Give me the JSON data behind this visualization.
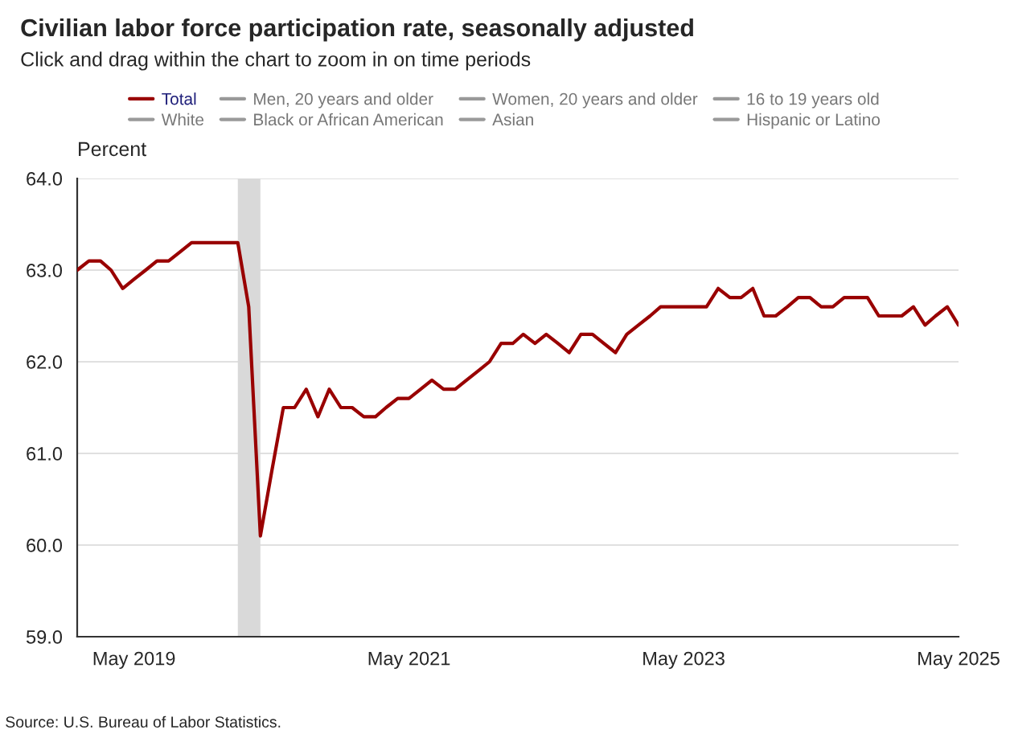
{
  "chart_data": {
    "type": "line",
    "title": "Civilian labor force participation rate, seasonally adjusted",
    "subtitle": "Click and drag within the chart to zoom in on time periods",
    "ylabel": "Percent",
    "annotations": [
      "Source: U.S. Bureau of Labor Statistics."
    ],
    "x": [
      "2018-12",
      "2019-01",
      "2019-02",
      "2019-03",
      "2019-04",
      "2019-05",
      "2019-06",
      "2019-07",
      "2019-08",
      "2019-09",
      "2019-10",
      "2019-11",
      "2019-12",
      "2020-01",
      "2020-02",
      "2020-03",
      "2020-04",
      "2020-05",
      "2020-06",
      "2020-07",
      "2020-08",
      "2020-09",
      "2020-10",
      "2020-11",
      "2020-12",
      "2021-01",
      "2021-02",
      "2021-03",
      "2021-04",
      "2021-05",
      "2021-06",
      "2021-07",
      "2021-08",
      "2021-09",
      "2021-10",
      "2021-11",
      "2021-12",
      "2022-01",
      "2022-02",
      "2022-03",
      "2022-04",
      "2022-05",
      "2022-06",
      "2022-07",
      "2022-08",
      "2022-09",
      "2022-10",
      "2022-11",
      "2022-12",
      "2023-01",
      "2023-02",
      "2023-03",
      "2023-04",
      "2023-05",
      "2023-06",
      "2023-07",
      "2023-08",
      "2023-09",
      "2023-10",
      "2023-11",
      "2023-12",
      "2024-01",
      "2024-02",
      "2024-03",
      "2024-04",
      "2024-05",
      "2024-06",
      "2024-07",
      "2024-08",
      "2024-09",
      "2024-10",
      "2024-11",
      "2024-12",
      "2025-01",
      "2025-02",
      "2025-03",
      "2025-04",
      "2025-05"
    ],
    "series": [
      {
        "name": "Total",
        "color": "#990000",
        "values": [
          63.0,
          63.1,
          63.1,
          63.0,
          62.8,
          62.9,
          63.0,
          63.1,
          63.1,
          63.2,
          63.3,
          63.3,
          63.3,
          63.3,
          63.3,
          62.6,
          60.1,
          60.8,
          61.5,
          61.5,
          61.7,
          61.4,
          61.7,
          61.5,
          61.5,
          61.4,
          61.4,
          61.5,
          61.6,
          61.6,
          61.7,
          61.8,
          61.7,
          61.7,
          61.8,
          61.9,
          62.0,
          62.2,
          62.2,
          62.3,
          62.2,
          62.3,
          62.2,
          62.1,
          62.3,
          62.3,
          62.2,
          62.1,
          62.3,
          62.4,
          62.5,
          62.6,
          62.6,
          62.6,
          62.6,
          62.6,
          62.8,
          62.7,
          62.7,
          62.8,
          62.5,
          62.5,
          62.6,
          62.7,
          62.7,
          62.6,
          62.6,
          62.7,
          62.7,
          62.7,
          62.5,
          62.5,
          62.5,
          62.6,
          62.4,
          62.5,
          62.6,
          62.4
        ]
      },
      {
        "name": "Men, 20 years and older",
        "color": "#999999",
        "values": [
          null,
          null,
          null,
          null,
          null,
          null,
          null,
          null,
          null,
          null,
          null,
          null,
          null,
          null,
          null,
          null,
          null,
          null,
          null,
          null,
          null,
          null,
          null,
          null,
          null,
          null,
          null,
          null,
          null,
          null,
          null,
          null,
          null,
          null,
          null,
          null,
          null,
          null,
          null,
          null,
          null,
          null,
          null,
          null,
          null,
          null,
          null,
          null,
          null,
          null,
          null,
          null,
          null,
          null,
          null,
          null,
          null,
          null,
          null,
          null,
          null,
          null,
          null,
          null,
          null,
          null,
          null,
          null,
          null,
          null,
          null,
          null,
          null,
          null,
          null,
          null,
          null,
          null
        ]
      },
      {
        "name": "Women, 20 years and older",
        "color": "#999999",
        "values": [
          null,
          null,
          null,
          null,
          null,
          null,
          null,
          null,
          null,
          null,
          null,
          null,
          null,
          null,
          null,
          null,
          null,
          null,
          null,
          null,
          null,
          null,
          null,
          null,
          null,
          null,
          null,
          null,
          null,
          null,
          null,
          null,
          null,
          null,
          null,
          null,
          null,
          null,
          null,
          null,
          null,
          null,
          null,
          null,
          null,
          null,
          null,
          null,
          null,
          null,
          null,
          null,
          null,
          null,
          null,
          null,
          null,
          null,
          null,
          null,
          null,
          null,
          null,
          null,
          null,
          null,
          null,
          null,
          null,
          null,
          null,
          null,
          null,
          null,
          null,
          null,
          null,
          null
        ]
      },
      {
        "name": "16 to 19 years old",
        "color": "#999999",
        "values": [
          null,
          null,
          null,
          null,
          null,
          null,
          null,
          null,
          null,
          null,
          null,
          null,
          null,
          null,
          null,
          null,
          null,
          null,
          null,
          null,
          null,
          null,
          null,
          null,
          null,
          null,
          null,
          null,
          null,
          null,
          null,
          null,
          null,
          null,
          null,
          null,
          null,
          null,
          null,
          null,
          null,
          null,
          null,
          null,
          null,
          null,
          null,
          null,
          null,
          null,
          null,
          null,
          null,
          null,
          null,
          null,
          null,
          null,
          null,
          null,
          null,
          null,
          null,
          null,
          null,
          null,
          null,
          null,
          null,
          null,
          null,
          null,
          null,
          null,
          null,
          null,
          null,
          null
        ]
      },
      {
        "name": "White",
        "color": "#999999",
        "values": [
          null,
          null,
          null,
          null,
          null,
          null,
          null,
          null,
          null,
          null,
          null,
          null,
          null,
          null,
          null,
          null,
          null,
          null,
          null,
          null,
          null,
          null,
          null,
          null,
          null,
          null,
          null,
          null,
          null,
          null,
          null,
          null,
          null,
          null,
          null,
          null,
          null,
          null,
          null,
          null,
          null,
          null,
          null,
          null,
          null,
          null,
          null,
          null,
          null,
          null,
          null,
          null,
          null,
          null,
          null,
          null,
          null,
          null,
          null,
          null,
          null,
          null,
          null,
          null,
          null,
          null,
          null,
          null,
          null,
          null,
          null,
          null,
          null,
          null,
          null,
          null,
          null,
          null
        ]
      },
      {
        "name": "Black or African American",
        "color": "#999999",
        "values": [
          null,
          null,
          null,
          null,
          null,
          null,
          null,
          null,
          null,
          null,
          null,
          null,
          null,
          null,
          null,
          null,
          null,
          null,
          null,
          null,
          null,
          null,
          null,
          null,
          null,
          null,
          null,
          null,
          null,
          null,
          null,
          null,
          null,
          null,
          null,
          null,
          null,
          null,
          null,
          null,
          null,
          null,
          null,
          null,
          null,
          null,
          null,
          null,
          null,
          null,
          null,
          null,
          null,
          null,
          null,
          null,
          null,
          null,
          null,
          null,
          null,
          null,
          null,
          null,
          null,
          null,
          null,
          null,
          null,
          null,
          null,
          null,
          null,
          null,
          null,
          null,
          null,
          null
        ]
      },
      {
        "name": "Asian",
        "color": "#999999",
        "values": [
          null,
          null,
          null,
          null,
          null,
          null,
          null,
          null,
          null,
          null,
          null,
          null,
          null,
          null,
          null,
          null,
          null,
          null,
          null,
          null,
          null,
          null,
          null,
          null,
          null,
          null,
          null,
          null,
          null,
          null,
          null,
          null,
          null,
          null,
          null,
          null,
          null,
          null,
          null,
          null,
          null,
          null,
          null,
          null,
          null,
          null,
          null,
          null,
          null,
          null,
          null,
          null,
          null,
          null,
          null,
          null,
          null,
          null,
          null,
          null,
          null,
          null,
          null,
          null,
          null,
          null,
          null,
          null,
          null,
          null,
          null,
          null,
          null,
          null,
          null,
          null,
          null,
          null
        ]
      },
      {
        "name": "Hispanic or Latino",
        "color": "#999999",
        "values": [
          null,
          null,
          null,
          null,
          null,
          null,
          null,
          null,
          null,
          null,
          null,
          null,
          null,
          null,
          null,
          null,
          null,
          null,
          null,
          null,
          null,
          null,
          null,
          null,
          null,
          null,
          null,
          null,
          null,
          null,
          null,
          null,
          null,
          null,
          null,
          null,
          null,
          null,
          null,
          null,
          null,
          null,
          null,
          null,
          null,
          null,
          null,
          null,
          null,
          null,
          null,
          null,
          null,
          null,
          null,
          null,
          null,
          null,
          null,
          null,
          null,
          null,
          null,
          null,
          null,
          null,
          null,
          null,
          null,
          null,
          null,
          null,
          null,
          null,
          null,
          null,
          null,
          null
        ]
      }
    ],
    "xlim": [
      "2018-12",
      "2025-05"
    ],
    "xticks": [
      {
        "value": "2019-05",
        "label": "May 2019"
      },
      {
        "value": "2021-05",
        "label": "May 2021"
      },
      {
        "value": "2023-05",
        "label": "May 2023"
      },
      {
        "value": "2025-05",
        "label": "May 2025"
      }
    ],
    "ylim": [
      59.0,
      64.0
    ],
    "yticks": [
      {
        "value": 59.0,
        "label": "59.0"
      },
      {
        "value": 60.0,
        "label": "60.0"
      },
      {
        "value": 61.0,
        "label": "61.0"
      },
      {
        "value": 62.0,
        "label": "62.0"
      },
      {
        "value": 63.0,
        "label": "63.0"
      },
      {
        "value": 64.0,
        "label": "64.0"
      }
    ],
    "bands": [
      {
        "axis": "x",
        "from": "2020-02",
        "to": "2020-04",
        "color": "#d9d9d9"
      }
    ],
    "grid": "y",
    "legend": "top",
    "marker": "none",
    "line_style": "solid"
  }
}
